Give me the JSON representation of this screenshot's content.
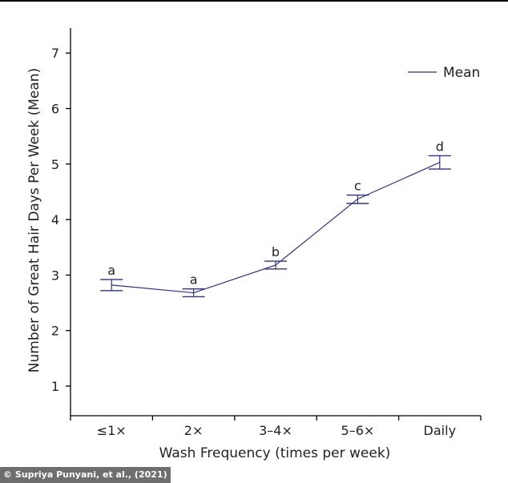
{
  "chart_data": {
    "type": "line",
    "title": "",
    "xlabel": "Wash Frequency (times per week)",
    "ylabel": "Number of Great Hair Days Per Week (Mean)",
    "categories": [
      "≤1×",
      "2×",
      "3–4×",
      "5–6×",
      "Daily"
    ],
    "ylim": [
      0,
      7.5
    ],
    "yticks": [
      1,
      2,
      3,
      4,
      5,
      6,
      7
    ],
    "series": [
      {
        "name": "Mean",
        "values": [
          2.82,
          2.68,
          3.18,
          4.37,
          5.03
        ],
        "error_low": [
          2.72,
          2.61,
          3.11,
          4.29,
          4.91
        ],
        "error_high": [
          2.92,
          2.75,
          3.25,
          4.44,
          5.15
        ],
        "significance_labels": [
          "a",
          "a",
          "b",
          "c",
          "d"
        ]
      }
    ],
    "legend": "top-right",
    "grid": false,
    "line_color": "#2e3192"
  },
  "credit": "© Supriya Punyani, et al., (2021)"
}
